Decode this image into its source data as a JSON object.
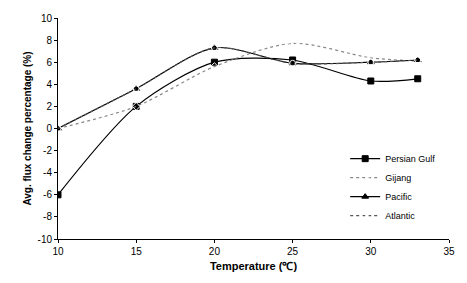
{
  "chart_data": {
    "type": "line",
    "x_label": "Temperature (℃)",
    "y_label": "Avg. flux change percentage (%)",
    "xlim": [
      10,
      35
    ],
    "xticks": [
      10,
      15,
      20,
      25,
      30,
      35
    ],
    "ylim": [
      -10,
      10
    ],
    "yticks": [
      -10,
      -8,
      -6,
      -4,
      -2,
      0,
      2,
      4,
      6,
      8,
      10
    ],
    "grid": false,
    "legend": "lower right",
    "x": [
      10,
      15,
      20,
      25,
      30,
      33
    ],
    "series": [
      {
        "name": "Persian Gulf",
        "color": "#000000",
        "marker": "square",
        "line_style": "solid",
        "values": [
          -6,
          2,
          6,
          6.2,
          4.3,
          4.5
        ]
      },
      {
        "name": "Gijang",
        "color": "#888888",
        "marker": "diamond-open",
        "line_style": "dotted",
        "values": [
          0,
          2,
          5.6,
          7.7,
          6.4,
          6.1
        ]
      },
      {
        "name": "Pacific",
        "color": "#000000",
        "marker": "triangle",
        "line_style": "solid",
        "values": [
          0,
          3.6,
          7.3,
          5.9,
          6,
          6.2
        ]
      },
      {
        "name": "Atlantic",
        "color": "#555555",
        "marker": "circle-open",
        "line_style": "dotted",
        "values": [
          0,
          3.6,
          7.3,
          5.9,
          6,
          6.2
        ]
      }
    ]
  }
}
